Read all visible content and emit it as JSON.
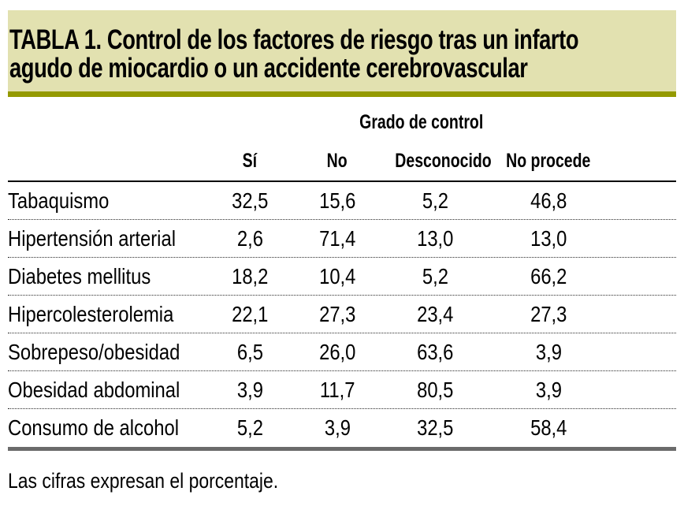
{
  "page": {
    "title_lines": [
      "TABLA 1. Control de los factores de riesgo tras un infarto",
      "agudo de miocardio o un accidente cerebrovascular"
    ],
    "footnote": "Las cifras expresan el porcentaje."
  },
  "table": {
    "group_header": "Grado de control",
    "columns": [
      "Sí",
      "No",
      "Desconocido",
      "No procede"
    ],
    "rows": [
      {
        "label": "Tabaquismo",
        "values": [
          "32,5",
          "15,6",
          "5,2",
          "46,8"
        ]
      },
      {
        "label": "Hipertensión arterial",
        "values": [
          "2,6",
          "71,4",
          "13,0",
          "13,0"
        ]
      },
      {
        "label": "Diabetes mellitus",
        "values": [
          "18,2",
          "10,4",
          "5,2",
          "66,2"
        ]
      },
      {
        "label": "Hipercolesterolemia",
        "values": [
          "22,1",
          "27,3",
          "23,4",
          "27,3"
        ]
      },
      {
        "label": "Sobrepeso/obesidad",
        "values": [
          "6,5",
          "26,0",
          "63,6",
          "3,9"
        ]
      },
      {
        "label": "Obesidad abdominal",
        "values": [
          "3,9",
          "11,7",
          "80,5",
          "3,9"
        ]
      },
      {
        "label": "Consumo de alcohol",
        "values": [
          "5,2",
          "3,9",
          "32,5",
          "58,4"
        ]
      }
    ]
  },
  "colors": {
    "title_bg": "#e2e1b0",
    "title_rule": "#949a00",
    "header_rule": "#000000",
    "bottom_rule": "#6b6b6b",
    "text": "#000000"
  }
}
